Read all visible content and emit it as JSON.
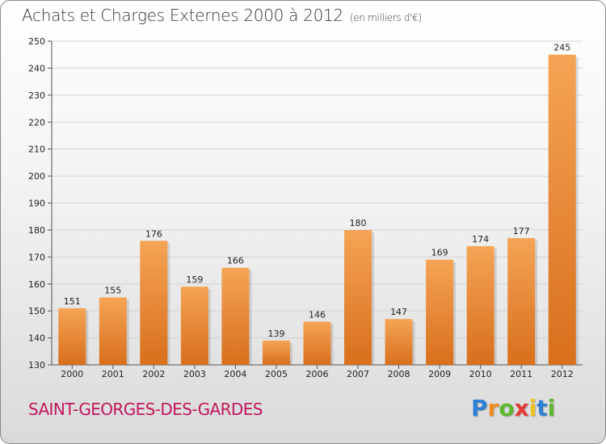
{
  "chart_data": {
    "type": "bar",
    "title": "Achats et Charges Externes 2000 à 2012",
    "subtitle": "(en milliers d'€)",
    "xlabel": "",
    "ylabel": "",
    "categories": [
      "2000",
      "2001",
      "2002",
      "2003",
      "2004",
      "2005",
      "2006",
      "2007",
      "2008",
      "2009",
      "2010",
      "2011",
      "2012"
    ],
    "values": [
      151,
      155,
      176,
      159,
      166,
      139,
      146,
      180,
      147,
      169,
      174,
      177,
      245
    ],
    "ylim": [
      130,
      250
    ],
    "yticks": [
      130,
      140,
      150,
      160,
      170,
      180,
      190,
      200,
      210,
      220,
      230,
      240,
      250
    ],
    "grid": true,
    "bar_color_top": "#f5a455",
    "bar_color_bottom": "#d86f1c"
  },
  "footer": {
    "commune": "SAINT-GEORGES-DES-GARDES",
    "commune_color": "#c2185b",
    "logo_letters": [
      "P",
      "r",
      "o",
      "x",
      "i",
      "t",
      "i"
    ],
    "logo_colors": [
      "#2e7fd6",
      "#f28c1e",
      "#5cb82e",
      "#e53935",
      "#f2c21e",
      "#2e7fd6",
      "#5cb82e"
    ]
  }
}
